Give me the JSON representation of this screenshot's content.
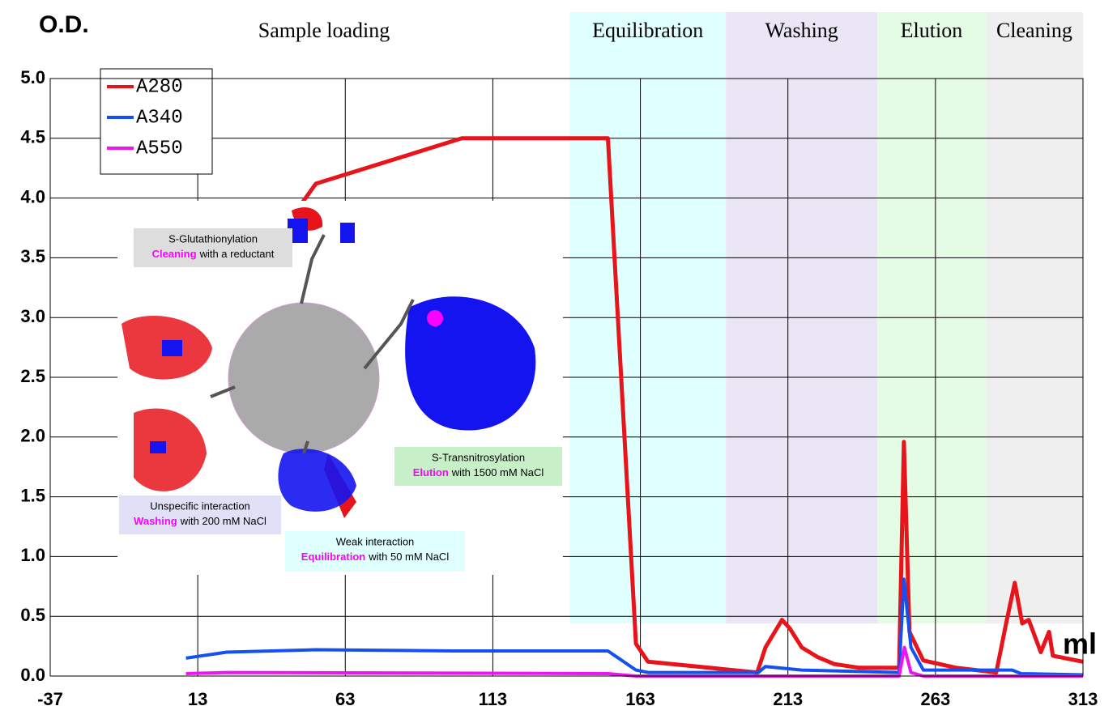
{
  "chart_data": {
    "type": "line",
    "y_label": "O.D.",
    "x_label": "ml",
    "phase_label": "Sample loading",
    "regions": [
      {
        "label": "Equilibration",
        "from": 139,
        "to": 192,
        "color": "#e0ffff"
      },
      {
        "label": "Washing",
        "from": 192,
        "to": 243.3,
        "color": "#ebe6f6"
      },
      {
        "label": "Elution",
        "from": 243.3,
        "to": 280,
        "color": "#e4fbe4"
      },
      {
        "label": "Cleaning",
        "from": 280,
        "to": 313,
        "color": "#efefef"
      }
    ],
    "xlim": [
      -37,
      313
    ],
    "xticks": [
      -37,
      13,
      63,
      113,
      163,
      213,
      263,
      313
    ],
    "ylim": [
      0,
      5
    ],
    "yticks": [
      {
        "value": 0,
        "label": "0.0"
      },
      0.5,
      {
        "value": 1,
        "label": "1.0"
      },
      1.5,
      {
        "value": 2,
        "label": "2.0"
      },
      2.5,
      {
        "value": 3,
        "label": "3.0"
      },
      3.5,
      {
        "value": 4,
        "label": "4.0"
      },
      4.5,
      {
        "value": 5,
        "label": "5.0"
      }
    ],
    "grid": true,
    "series": [
      {
        "name": "A280",
        "color": "#e8141c",
        "x": [
          47.5,
          53,
          102.5,
          152,
          161.5,
          165.6,
          202.6,
          205.4,
          211,
          213.6,
          217.7,
          223,
          228.7,
          237,
          248,
          250.7,
          252.3,
          254.2,
          258.9,
          269.9,
          283.6,
          287.2,
          289.9,
          292.4,
          294.6,
          298.7,
          301.5,
          302.8,
          313
        ],
        "values": [
          3.93,
          4.12,
          4.5,
          4.5,
          0.27,
          0.12,
          0.03,
          0.24,
          0.47,
          0.4,
          0.24,
          0.16,
          0.1,
          0.07,
          0.07,
          0.07,
          1.96,
          0.37,
          0.13,
          0.07,
          0.03,
          0.47,
          0.78,
          0.44,
          0.47,
          0.2,
          0.37,
          0.17,
          0.12
        ]
      },
      {
        "name": "A340",
        "color": "#1450f0",
        "x": [
          9,
          22.8,
          53,
          99.7,
          152,
          161.5,
          165.6,
          203,
          205.4,
          217.7,
          250.7,
          252.3,
          254.7,
          258.9,
          289,
          292,
          313
        ],
        "values": [
          0.15,
          0.2,
          0.22,
          0.21,
          0.21,
          0.05,
          0.03,
          0.03,
          0.08,
          0.05,
          0.03,
          0.81,
          0.24,
          0.05,
          0.05,
          0.02,
          0.01
        ]
      },
      {
        "name": "A550",
        "color": "#f014f0",
        "x": [
          9,
          22.8,
          152,
          161.5,
          250.7,
          252.5,
          254.7,
          258.9,
          313
        ],
        "values": [
          0.02,
          0.03,
          0.02,
          0,
          0,
          0.24,
          0.03,
          0,
          0
        ]
      }
    ]
  },
  "inset": {
    "annotations": [
      {
        "title": "S-Glutathionylation",
        "phase": "Cleaning",
        "rest": "with a reductant"
      },
      {
        "title": "S-Transnitrosylation",
        "phase": "Elution",
        "rest": "with 1500 mM NaCl"
      },
      {
        "title": "Unspecific interaction",
        "phase": "Washing",
        "rest": "with 200 mM NaCl"
      },
      {
        "title": "Weak interaction",
        "phase": "Equilibration",
        "rest": "with 50 mM NaCl"
      }
    ]
  }
}
